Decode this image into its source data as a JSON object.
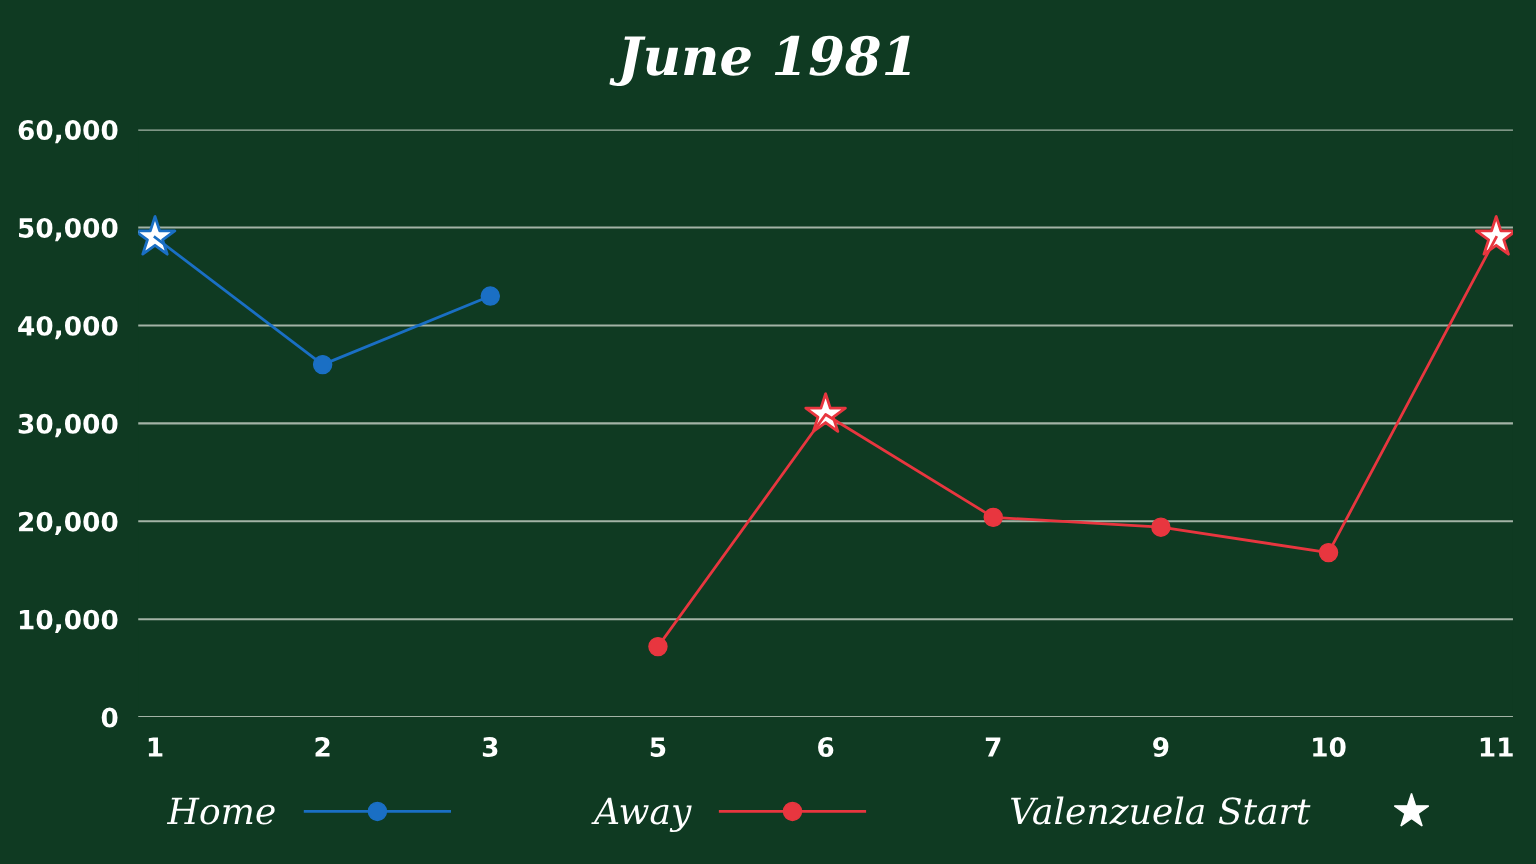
{
  "chart_data": {
    "type": "line",
    "title": "June 1981",
    "categories": [
      "1",
      "2",
      "3",
      "5",
      "6",
      "7",
      "9",
      "10",
      "11"
    ],
    "series": [
      {
        "name": "Home",
        "color": "#1a6fc4",
        "marker": "circle",
        "values": [
          49000,
          36000,
          43000,
          null,
          null,
          null,
          null,
          null,
          null
        ]
      },
      {
        "name": "Away",
        "color": "#e8363f",
        "marker": "circle",
        "values": [
          null,
          null,
          null,
          7200,
          30900,
          20400,
          19400,
          16800,
          49000
        ]
      },
      {
        "name": "Valenzuela Start",
        "type": "scatter",
        "color": "#ffffff",
        "marker": "star",
        "x": [
          "1",
          "6",
          "11"
        ],
        "values": [
          49000,
          30900,
          49000
        ]
      }
    ],
    "ylim": [
      0,
      60000
    ],
    "yticks": [
      0,
      {
        "value": 10000,
        "label": "10,000"
      },
      {
        "value": 20000,
        "label": "20,000"
      },
      {
        "value": 30000,
        "label": "30,000"
      },
      {
        "value": 40000,
        "label": "40,000"
      },
      {
        "value": 50000,
        "label": "50,000"
      },
      {
        "value": 60000,
        "label": "60,000"
      }
    ],
    "grid": "y",
    "legend": "bottom"
  }
}
